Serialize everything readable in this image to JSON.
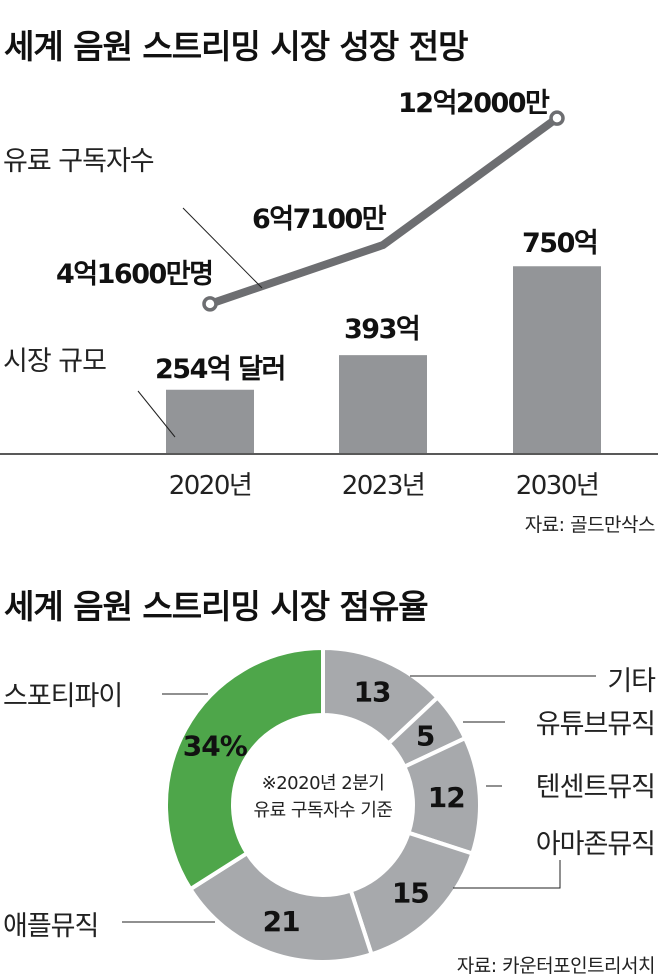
{
  "chart_data": [
    {
      "type": "bar+line",
      "title": "세계 음원 스트리밍 시장 성장 전망",
      "categories": [
        "2020년",
        "2023년",
        "2030년"
      ],
      "series": [
        {
          "name": "시장 규모",
          "type": "bar",
          "values": [
            254,
            393,
            750
          ],
          "labels": [
            "254억 달러",
            "393억",
            "750억"
          ],
          "color": "#939598"
        },
        {
          "name": "유료 구독자수",
          "type": "line",
          "values": [
            4.16,
            6.71,
            12.2
          ],
          "labels": [
            "4억1600만명",
            "6억7100만",
            "12억2000만"
          ],
          "color": "#6d6e71"
        }
      ],
      "source": "자료: 골드만삭스"
    },
    {
      "type": "pie",
      "title": "세계 음원 스트리밍 시장 점유율",
      "note_line1": "※2020년 2분기",
      "note_line2": "유료 구독자수 기준",
      "slices": [
        {
          "name": "기타",
          "value": 13,
          "label": "13",
          "color": "#a7a9ac"
        },
        {
          "name": "유튜브뮤직",
          "value": 5,
          "label": "5",
          "color": "#a7a9ac"
        },
        {
          "name": "텐센트뮤직",
          "value": 12,
          "label": "12",
          "color": "#a7a9ac"
        },
        {
          "name": "아마존뮤직",
          "value": 15,
          "label": "15",
          "color": "#a7a9ac"
        },
        {
          "name": "애플뮤직",
          "value": 21,
          "label": "21",
          "color": "#a7a9ac"
        },
        {
          "name": "스포티파이",
          "value": 34,
          "label": "34%",
          "color": "#4ea64a"
        }
      ],
      "source": "자료: 카운터포인트리서치"
    }
  ]
}
